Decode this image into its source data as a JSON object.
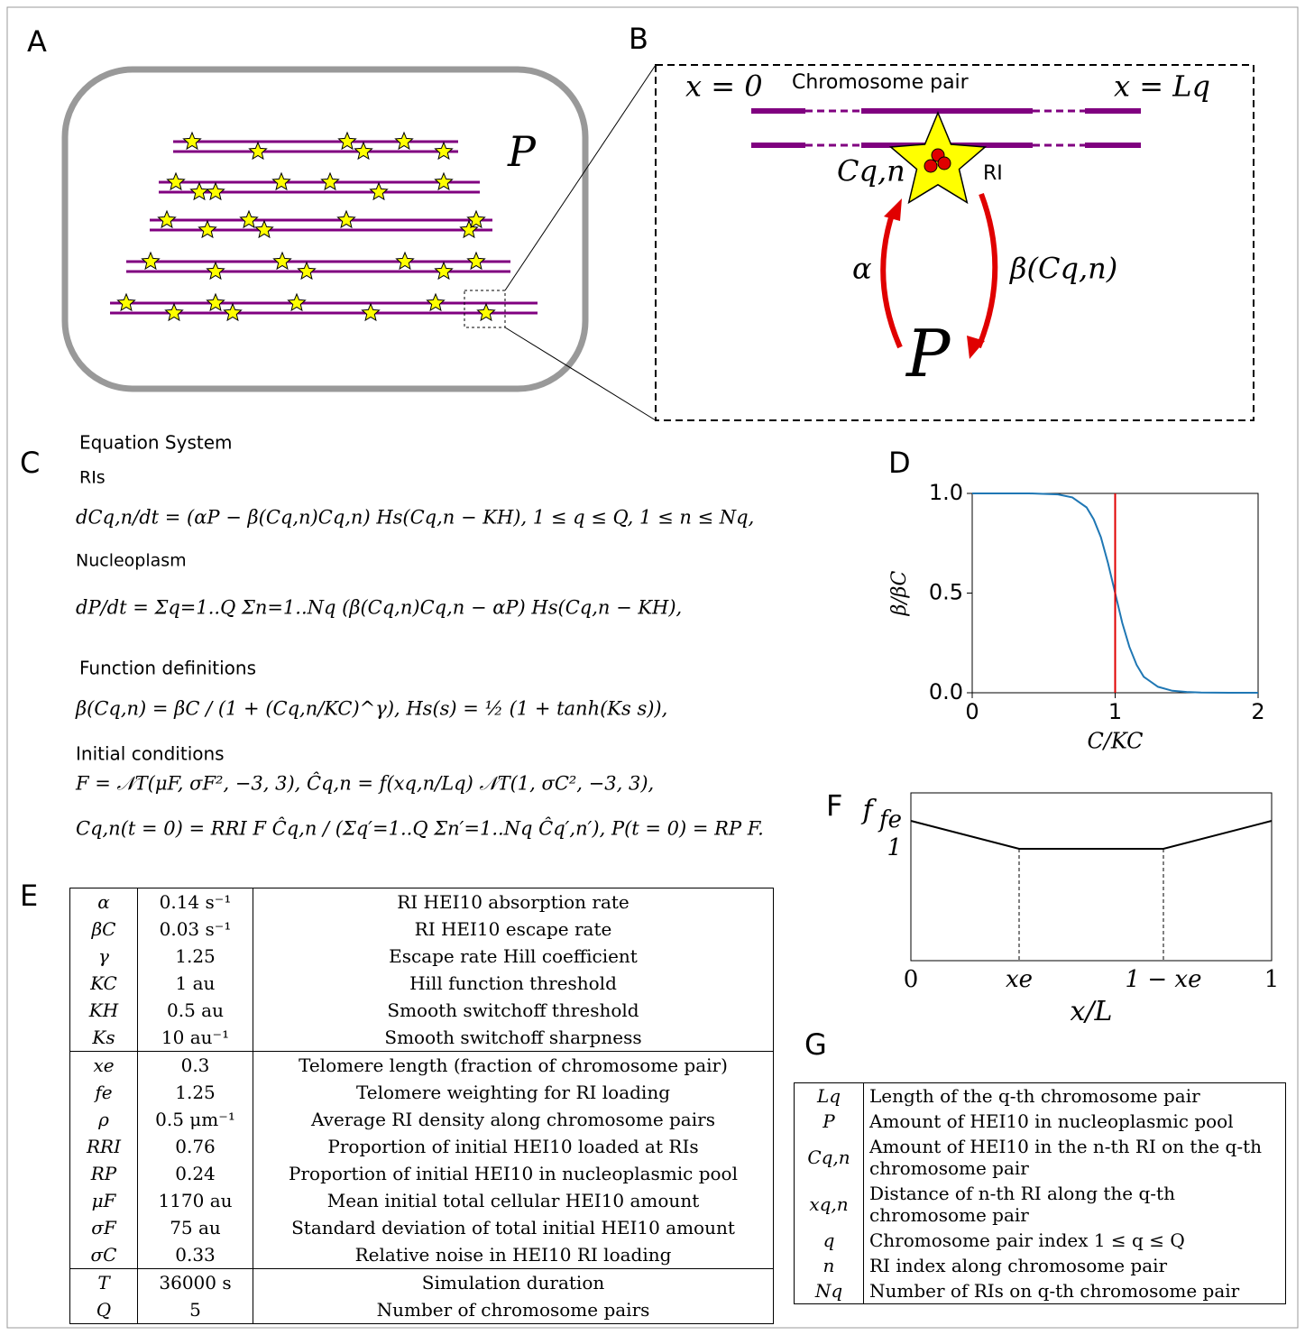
{
  "panel_labels": [
    "A",
    "B",
    "C",
    "D",
    "E",
    "F",
    "G"
  ],
  "panel_a": {
    "pool_label": "P"
  },
  "panel_b": {
    "left_label": "x = 0",
    "title": "Chromosome pair",
    "right_label": "x = Lq",
    "site_label": "Cq,n",
    "ri_label": "RI",
    "alpha_label": "α",
    "beta_label": "β(Cq,n)",
    "pool_label": "P"
  },
  "equations": {
    "title": "Equation System",
    "ris_heading": "RIs",
    "ris": "dCq,n/dt = (αP − β(Cq,n)Cq,n) Hs(Cq,n − KH),      1 ≤ q ≤ Q, 1 ≤ n ≤ Nq,",
    "nucleoplasm_heading": "Nucleoplasm",
    "nucleoplasm": "dP/dt = Σq=1..Q Σn=1..Nq (β(Cq,n)Cq,n − αP) Hs(Cq,n − KH),",
    "functions_heading": "Function definitions",
    "functions": "β(Cq,n) = βC / (1 + (Cq,n/KC)^γ),    Hs(s) = ½ (1 + tanh(Ks s)),",
    "initial_heading": "Initial conditions",
    "initial_1": "F = 𝒩T(μF, σF², −3, 3),    Ĉq,n = f(xq,n/Lq) 𝒩T(1, σC², −3, 3),",
    "initial_2": "Cq,n(t = 0) = RRI F Ĉq,n / (Σq′=1..Q Σn′=1..Nq Ĉq′,n′),    P(t = 0) = RP F."
  },
  "chart_data": [
    {
      "type": "line",
      "x": [
        0,
        0.2,
        0.4,
        0.6,
        0.7,
        0.8,
        0.85,
        0.9,
        0.95,
        1.0,
        1.05,
        1.1,
        1.15,
        1.2,
        1.3,
        1.4,
        1.5,
        1.6,
        1.8,
        2.0
      ],
      "values": [
        1,
        1,
        1,
        0.995,
        0.98,
        0.93,
        0.87,
        0.78,
        0.65,
        0.5,
        0.35,
        0.23,
        0.14,
        0.08,
        0.03,
        0.01,
        0.004,
        0.001,
        0,
        0
      ],
      "color": "#1f77b4",
      "vline": 1,
      "vline_color": "#e00000",
      "xlabel": "C/KC",
      "ylabel": "β/βC",
      "xlim": [
        0,
        2
      ],
      "ylim": [
        0,
        1
      ],
      "xticks": [
        0,
        1,
        2
      ],
      "yticks": [
        {
          "value": 0,
          "label": "0.0"
        },
        {
          "value": 0.5,
          "label": "0.5"
        },
        {
          "value": 1,
          "label": "1.0"
        }
      ]
    },
    {
      "type": "line",
      "x": [
        0,
        0.3,
        0.7,
        1
      ],
      "values": [
        1.25,
        1,
        1,
        1.25
      ],
      "color": "#000000",
      "xlabel": "x/L",
      "ylabel": "f",
      "xlim": [
        0,
        1
      ],
      "ylim": [
        0,
        1.5
      ],
      "xticks": [
        {
          "value": 0,
          "label": "0"
        },
        {
          "value": 0.3,
          "label": "xe"
        },
        {
          "value": 0.7,
          "label": "1 − xe"
        },
        {
          "value": 1,
          "label": "1"
        }
      ],
      "yticks": [
        {
          "value": 1,
          "label": "1"
        },
        {
          "value": 1.25,
          "label": "fe"
        }
      ]
    }
  ],
  "parameter_table": {
    "rows": [
      [
        "α",
        "0.14 s⁻¹",
        "RI HEI10 absorption rate"
      ],
      [
        "βC",
        "0.03 s⁻¹",
        "RI HEI10 escape rate"
      ],
      [
        "γ",
        "1.25",
        "Escape rate Hill coefficient"
      ],
      [
        "KC",
        "1 au",
        "Hill function threshold"
      ],
      [
        "KH",
        "0.5 au",
        "Smooth switchoff threshold"
      ],
      [
        "Ks",
        "10 au⁻¹",
        "Smooth switchoff sharpness"
      ],
      [
        "xe",
        "0.3",
        "Telomere length (fraction of chromosome pair)"
      ],
      [
        "fe",
        "1.25",
        "Telomere weighting for RI loading"
      ],
      [
        "ρ",
        "0.5 μm⁻¹",
        "Average RI density along chromosome pairs"
      ],
      [
        "RRI",
        "0.76",
        "Proportion of initial HEI10 loaded at RIs"
      ],
      [
        "RP",
        "0.24",
        "Proportion of initial HEI10 in nucleoplasmic pool"
      ],
      [
        "μF",
        "1170 au",
        "Mean initial total cellular HEI10 amount"
      ],
      [
        "σF",
        "75 au",
        "Standard deviation of total initial HEI10 amount"
      ],
      [
        "σC",
        "0.33",
        "Relative noise in HEI10 RI loading"
      ],
      [
        "T",
        "36000 s",
        "Simulation duration"
      ],
      [
        "Q",
        "5",
        "Number of chromosome pairs"
      ]
    ]
  },
  "symbol_table": {
    "rows": [
      [
        "Lq",
        "Length of the q-th chromosome pair"
      ],
      [
        "P",
        "Amount of HEI10 in nucleoplasmic pool"
      ],
      [
        "Cq,n",
        "Amount of HEI10 in the n-th RI on the q-th chromosome pair"
      ],
      [
        "xq,n",
        "Distance of n-th RI along the q-th chromosome pair"
      ],
      [
        "q",
        "Chromosome pair index 1 ≤ q ≤ Q"
      ],
      [
        "n",
        "RI index along chromosome pair"
      ],
      [
        "Nq",
        "Number of RIs on q-th chromosome pair"
      ]
    ]
  }
}
